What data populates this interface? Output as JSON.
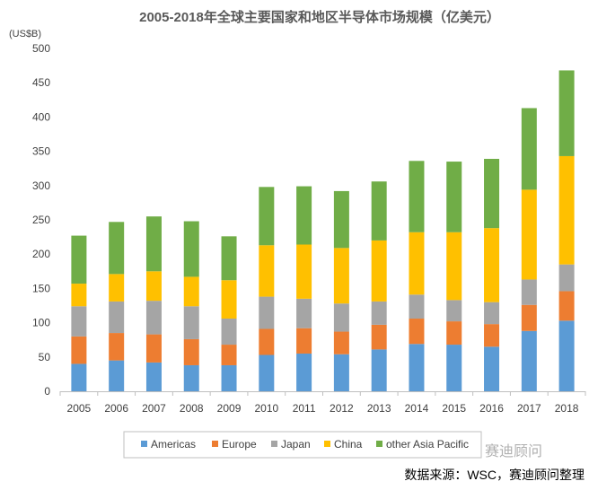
{
  "chart_data": {
    "type": "bar",
    "stacked": true,
    "title": "2005-2018年全球主要国家和地区半导体市场规模（亿美元）",
    "ylabel_unit": "(US$B)",
    "ylim": [
      0,
      500
    ],
    "yticks": [
      0,
      50,
      100,
      150,
      200,
      250,
      300,
      350,
      400,
      450,
      500
    ],
    "categories": [
      "2005",
      "2006",
      "2007",
      "2008",
      "2009",
      "2010",
      "2011",
      "2012",
      "2013",
      "2014",
      "2015",
      "2016",
      "2017",
      "2018"
    ],
    "series": [
      {
        "name": "Americas",
        "color": "#5b9bd5",
        "values": [
          40,
          45,
          42,
          38,
          38,
          53,
          55,
          54,
          61,
          69,
          68,
          65,
          88,
          103
        ]
      },
      {
        "name": "Europe",
        "color": "#ed7d31",
        "values": [
          40,
          40,
          41,
          38,
          30,
          38,
          37,
          33,
          36,
          37,
          34,
          33,
          38,
          43
        ]
      },
      {
        "name": "Japan",
        "color": "#a5a5a5",
        "values": [
          44,
          46,
          49,
          48,
          38,
          47,
          43,
          41,
          34,
          35,
          31,
          32,
          37,
          39
        ]
      },
      {
        "name": "China",
        "color": "#ffc000",
        "values": [
          33,
          40,
          43,
          43,
          56,
          75,
          79,
          81,
          89,
          91,
          99,
          108,
          131,
          158
        ]
      },
      {
        "name": "other Asia Pacific",
        "color": "#70ad47",
        "values": [
          70,
          76,
          80,
          81,
          64,
          85,
          85,
          83,
          86,
          104,
          103,
          101,
          119,
          125
        ]
      }
    ],
    "legend_position": "bottom",
    "grid": false
  },
  "source_note": "数据来源：WSC，赛迪顾问整理",
  "watermark": "赛迪顾问"
}
